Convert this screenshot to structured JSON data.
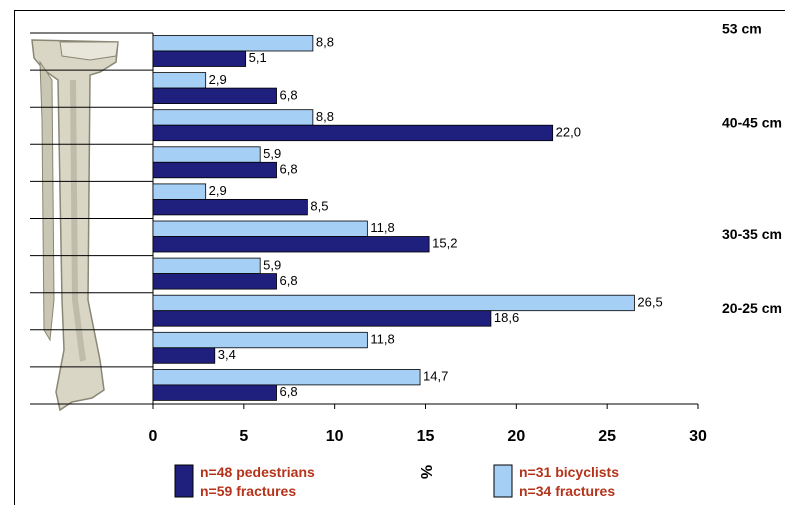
{
  "chart_data": {
    "type": "bar",
    "orientation": "horizontal",
    "categories": [
      "53 cm",
      null,
      "40-45 cm",
      null,
      null,
      "30-35 cm",
      null,
      "20-25 cm",
      null,
      null
    ],
    "series": [
      {
        "name": "n=31 bicyclists\nn=34 fractures",
        "color": "#a6cff5",
        "values": [
          8.8,
          2.9,
          8.8,
          5.9,
          2.9,
          11.8,
          5.9,
          26.5,
          11.8,
          14.7
        ],
        "value_labels": [
          "8,8",
          "2,9",
          "8,8",
          "5,9",
          "2,9",
          "11,8",
          "5,9",
          "26,5",
          "11,8",
          "14,7"
        ]
      },
      {
        "name": "n=48 pedestrians\nn=59 fractures",
        "color": "#1f1f7d",
        "values": [
          5.1,
          6.8,
          22.0,
          6.8,
          8.5,
          15.2,
          6.8,
          18.6,
          3.4,
          6.8
        ],
        "value_labels": [
          "5,1",
          "6,8",
          "22,0",
          "6,8",
          "8,5",
          "15,2",
          "6,8",
          "18,6",
          "3,4",
          "6,8"
        ]
      }
    ],
    "xlabel": "%",
    "xlim": [
      0,
      30
    ],
    "xticks": [
      0,
      5,
      10,
      15,
      20,
      25,
      30
    ],
    "grid": false
  }
}
